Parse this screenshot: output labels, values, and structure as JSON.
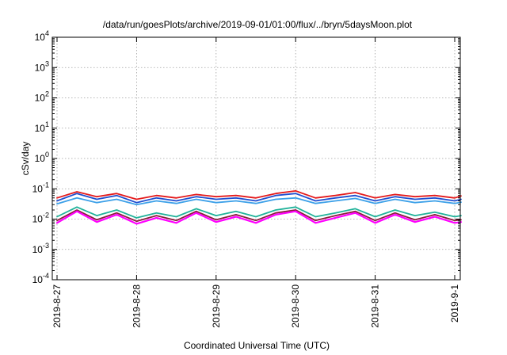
{
  "chart_data": {
    "type": "line",
    "title": "/data/run/goesPlots/archive/2019-09-01/01:00/flux/../bryn/5daysMoon.plot",
    "xlabel": "Coordinated Universal Time (UTC)",
    "ylabel": "cSv/day",
    "yscale": "log",
    "ylim": [
      0.0001,
      10000
    ],
    "xlim": [
      "2019-08-27",
      "2019-09-01 02:00"
    ],
    "grid": true,
    "legend": "none",
    "x_ticks": [
      "2019-8-27",
      "2019-8-28",
      "2019-8-29",
      "2019-8-30",
      "2019-8-31",
      "2019-9-1"
    ],
    "y_ticks": [
      {
        "value": 0.0001,
        "base": "10",
        "exp": "-4"
      },
      {
        "value": 0.001,
        "base": "10",
        "exp": "-3"
      },
      {
        "value": 0.01,
        "base": "10",
        "exp": "-2"
      },
      {
        "value": 0.1,
        "base": "10",
        "exp": "-1"
      },
      {
        "value": 1,
        "base": "10",
        "exp": "0"
      },
      {
        "value": 10,
        "base": "10",
        "exp": "1"
      },
      {
        "value": 100,
        "base": "10",
        "exp": "2"
      },
      {
        "value": 1000,
        "base": "10",
        "exp": "3"
      },
      {
        "value": 10000,
        "base": "10",
        "exp": "4"
      }
    ],
    "x_days": [
      0,
      0.25,
      0.5,
      0.75,
      1,
      1.25,
      1.5,
      1.75,
      2,
      2.25,
      2.5,
      2.75,
      3,
      3.25,
      3.5,
      3.75,
      4,
      4.25,
      4.5,
      4.75,
      5,
      5.08
    ],
    "series": [
      {
        "color": "#e41a1c",
        "values": [
          0.05,
          0.08,
          0.055,
          0.07,
          0.045,
          0.06,
          0.05,
          0.065,
          0.055,
          0.06,
          0.05,
          0.07,
          0.085,
          0.05,
          0.06,
          0.075,
          0.05,
          0.065,
          0.055,
          0.06,
          0.05,
          0.058
        ]
      },
      {
        "color": "#1f4fd0",
        "values": [
          0.04,
          0.07,
          0.045,
          0.06,
          0.035,
          0.05,
          0.04,
          0.055,
          0.045,
          0.05,
          0.04,
          0.06,
          0.07,
          0.04,
          0.05,
          0.06,
          0.04,
          0.055,
          0.045,
          0.05,
          0.04,
          0.045
        ]
      },
      {
        "color": "#3ca0e8",
        "values": [
          0.032,
          0.05,
          0.035,
          0.045,
          0.03,
          0.04,
          0.033,
          0.045,
          0.035,
          0.04,
          0.033,
          0.045,
          0.05,
          0.033,
          0.04,
          0.048,
          0.033,
          0.045,
          0.035,
          0.04,
          0.033,
          0.036
        ]
      },
      {
        "color": "#20b29a",
        "values": [
          0.012,
          0.025,
          0.013,
          0.02,
          0.011,
          0.016,
          0.012,
          0.022,
          0.013,
          0.018,
          0.012,
          0.02,
          0.025,
          0.012,
          0.016,
          0.022,
          0.012,
          0.02,
          0.013,
          0.017,
          0.012,
          0.013
        ]
      },
      {
        "color": "#8b1a3a",
        "values": [
          0.009,
          0.02,
          0.0095,
          0.016,
          0.0085,
          0.013,
          0.009,
          0.018,
          0.0095,
          0.014,
          0.009,
          0.016,
          0.02,
          0.009,
          0.013,
          0.018,
          0.009,
          0.016,
          0.0095,
          0.014,
          0.009,
          0.0095
        ]
      },
      {
        "color": "#ff00ff",
        "values": [
          0.0075,
          0.018,
          0.008,
          0.014,
          0.007,
          0.011,
          0.0075,
          0.016,
          0.008,
          0.012,
          0.0075,
          0.014,
          0.018,
          0.0075,
          0.011,
          0.016,
          0.0075,
          0.014,
          0.008,
          0.012,
          0.0075,
          0.008
        ]
      }
    ]
  }
}
